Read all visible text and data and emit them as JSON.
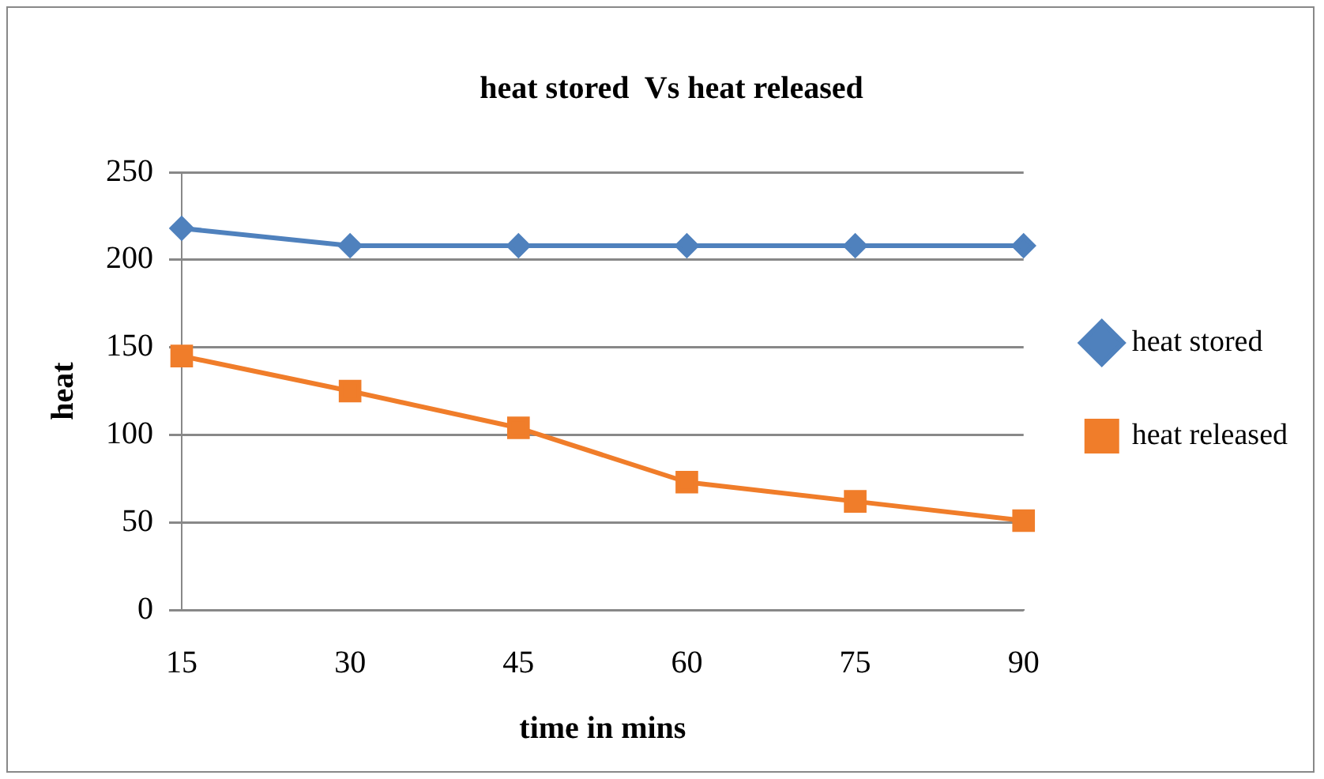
{
  "chart_data": {
    "type": "line",
    "title": "heat stored  Vs heat released",
    "xlabel": "time in mins",
    "ylabel": "heat",
    "categories": [
      "15",
      "30",
      "45",
      "60",
      "75",
      "90"
    ],
    "series": [
      {
        "name": "heat stored",
        "color": "#4f81bd",
        "marker": "diamond",
        "values": [
          218,
          208,
          208,
          208,
          208,
          208
        ]
      },
      {
        "name": "heat released",
        "color": "#f07d2a",
        "marker": "square",
        "values": [
          145,
          125,
          104,
          73,
          62,
          51
        ]
      }
    ],
    "ylim": [
      0,
      250
    ],
    "yticks": [
      0,
      50,
      100,
      150,
      200,
      250
    ],
    "grid": "y",
    "legend": "right"
  }
}
